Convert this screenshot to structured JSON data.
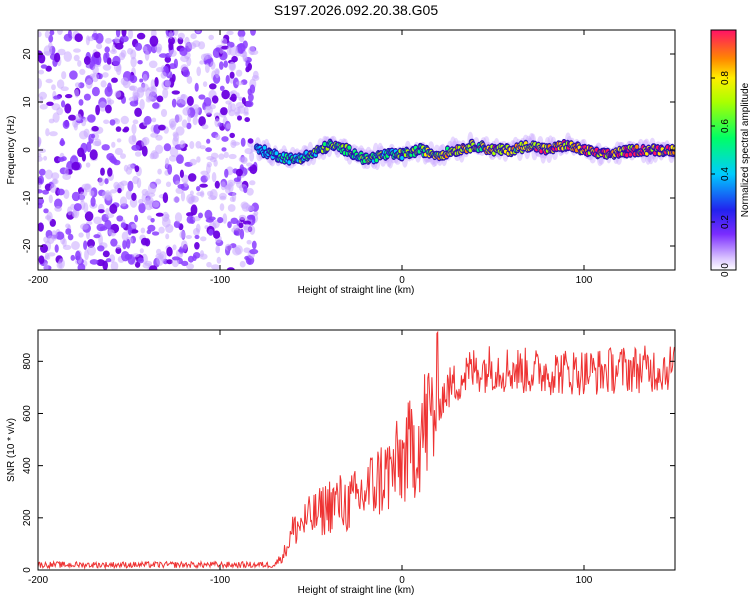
{
  "title": "S197.2026.092.20.38.G05",
  "chart_data": [
    {
      "type": "heatmap",
      "name": "spectrogram",
      "xlabel": "Height of straight line (km)",
      "ylabel": "Frequency (Hz)",
      "xlim": [
        -200,
        150
      ],
      "ylim": [
        -25,
        25
      ],
      "xticks": [
        -200,
        -100,
        0,
        100
      ],
      "yticks": [
        -20,
        -10,
        0,
        10,
        20
      ],
      "noise_region_x": [
        -200,
        -80
      ],
      "signal_region_x": [
        -80,
        150
      ],
      "ridge_track": {
        "x": [
          -78,
          -70,
          -60,
          -50,
          -40,
          -30,
          -20,
          -10,
          0,
          10,
          20,
          30,
          40,
          50,
          60,
          70,
          80,
          90,
          100,
          110,
          120,
          130,
          140,
          150
        ],
        "freq": [
          0,
          -1,
          -2,
          -1,
          1,
          0,
          -2,
          -1,
          -1,
          0,
          -1,
          0,
          1,
          0,
          0,
          1,
          0,
          1,
          0,
          -1,
          -0.5,
          0,
          0,
          0
        ],
        "amplitude": [
          0.35,
          0.4,
          0.45,
          0.5,
          0.55,
          0.5,
          0.55,
          0.5,
          0.55,
          0.6,
          0.7,
          0.75,
          0.7,
          0.75,
          0.7,
          0.8,
          0.75,
          0.8,
          0.85,
          0.95,
          0.9,
          0.95,
          0.9,
          0.9
        ]
      },
      "colorbar": {
        "label": "Normalized spectral amplitude",
        "range": [
          0,
          1
        ],
        "ticks": [
          "0.0",
          "0.2",
          "0.4",
          "0.6",
          "0.8"
        ]
      }
    },
    {
      "type": "line",
      "name": "snr",
      "xlabel": "Height of straight line (km)",
      "ylabel": "SNR (10 * v/v)",
      "xlim": [
        -200,
        150
      ],
      "ylim": [
        0,
        920
      ],
      "xticks": [
        -200,
        -100,
        0,
        100
      ],
      "yticks": [
        0,
        200,
        400,
        600,
        800
      ],
      "series": [
        {
          "name": "SNR",
          "color": "#ee3333",
          "x": [
            -200,
            -150,
            -100,
            -70,
            -65,
            -60,
            -55,
            -50,
            -45,
            -40,
            -35,
            -30,
            -25,
            -20,
            -15,
            -10,
            -5,
            0,
            5,
            10,
            15,
            20,
            25,
            30,
            35,
            40,
            45,
            50,
            55,
            60,
            70,
            80,
            90,
            100,
            110,
            120,
            130,
            140,
            150
          ],
          "y": [
            20,
            20,
            20,
            20,
            60,
            150,
            180,
            200,
            220,
            250,
            260,
            250,
            270,
            300,
            330,
            360,
            380,
            420,
            460,
            520,
            580,
            640,
            690,
            720,
            750,
            770,
            770,
            780,
            770,
            770,
            760,
            760,
            760,
            760,
            760,
            770,
            770,
            770,
            780
          ]
        }
      ]
    }
  ]
}
